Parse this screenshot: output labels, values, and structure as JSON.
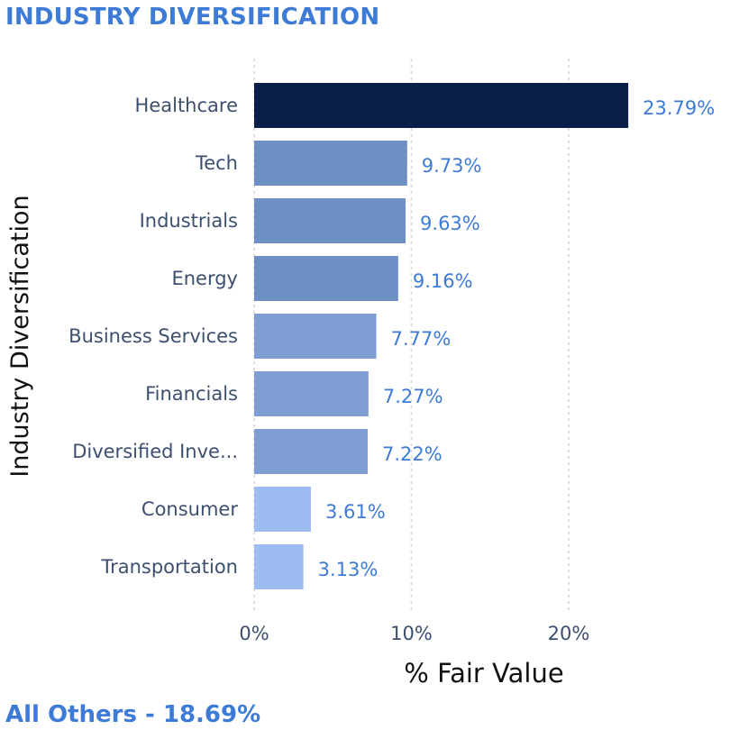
{
  "header": {
    "title": "INDUSTRY DIVERSIFICATION"
  },
  "footer": {
    "text": "All Others - 18.69%"
  },
  "colors": {
    "title": "#3d7bd6",
    "label": "#3d4f6f",
    "data_label": "#3d7bd6",
    "axis_title": "#111111",
    "gridline": "#d9d9d9",
    "bar_dark": "#0a1f48",
    "bar_medium": "#6e8fc4",
    "bar_mid_light": "#7d9dd3",
    "bar_light": "#9dbcf2"
  },
  "chart_data": {
    "type": "bar",
    "orientation": "horizontal",
    "categories": [
      "Healthcare",
      "Tech",
      "Industrials",
      "Energy",
      "Business Services",
      "Financials",
      "Diversified Inve...",
      "Consumer",
      "Transportation"
    ],
    "values": [
      23.79,
      9.73,
      9.63,
      9.16,
      7.77,
      7.27,
      7.22,
      3.61,
      3.13
    ],
    "data_labels": [
      "23.79%",
      "9.73%",
      "9.63%",
      "9.16%",
      "7.77%",
      "7.27%",
      "7.22%",
      "3.61%",
      "3.13%"
    ],
    "bar_colors": [
      "#0a1f48",
      "#6e8fc4",
      "#6e8fc4",
      "#6e8fc4",
      "#7d9dd3",
      "#7d9dd3",
      "#7d9dd3",
      "#9dbcf2",
      "#9dbcf2"
    ],
    "xlabel": "% Fair Value",
    "ylabel": "Industry Diversification",
    "xticks": [
      0,
      10,
      20
    ],
    "xtick_labels": [
      "0%",
      "10%",
      "20%"
    ],
    "xlim": [
      0,
      25
    ],
    "grid": true,
    "legend": "none"
  }
}
